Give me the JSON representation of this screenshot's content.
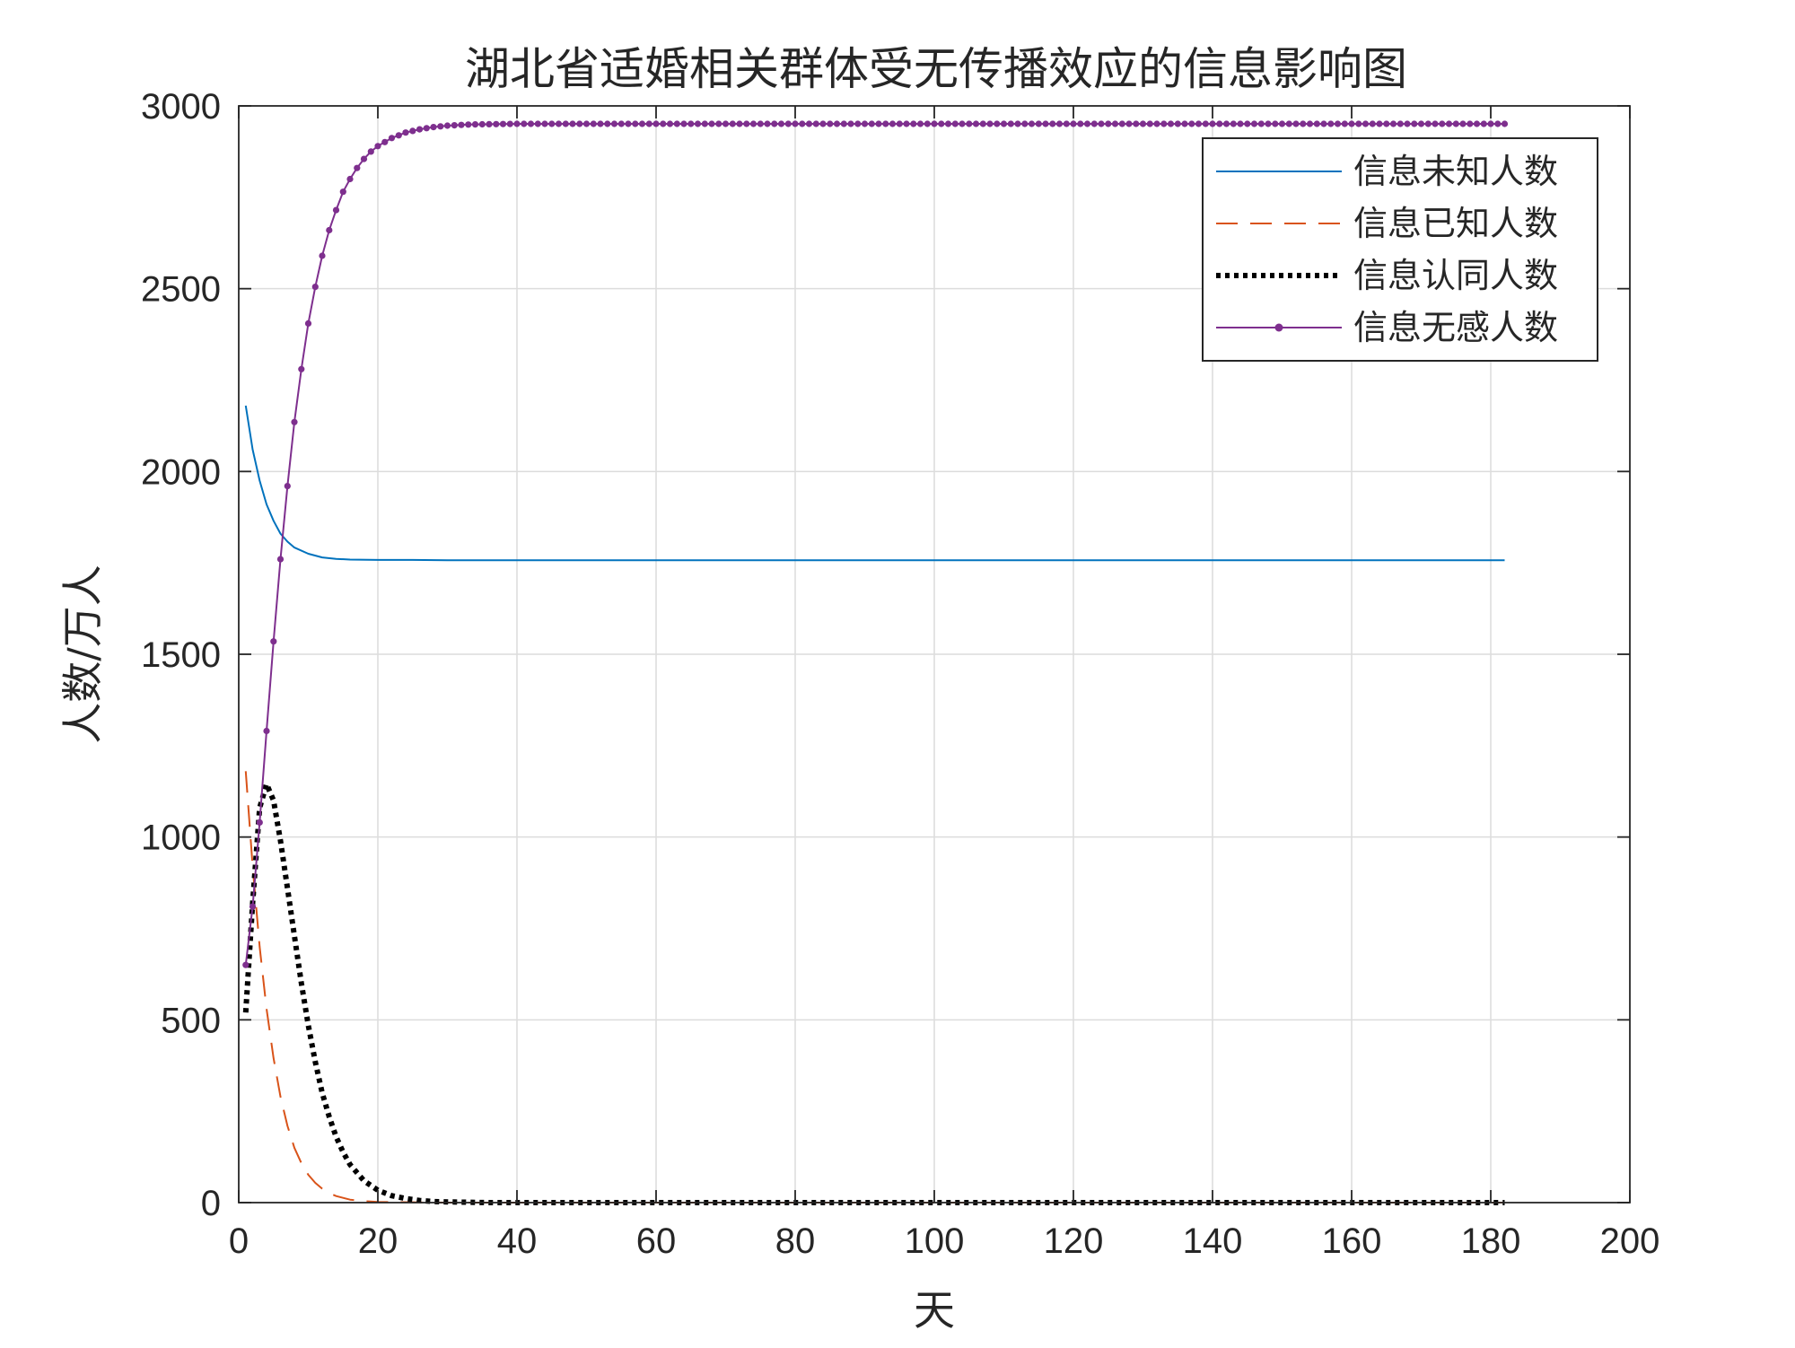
{
  "chart_data": {
    "type": "line",
    "title": "湖北省适婚相关群体受无传播效应的信息影响图",
    "xlabel": "天",
    "ylabel": "人数/万人",
    "xlim": [
      0,
      200
    ],
    "ylim": [
      0,
      3000
    ],
    "xticks": [
      0,
      20,
      40,
      60,
      80,
      100,
      120,
      140,
      160,
      180,
      200
    ],
    "yticks": [
      0,
      500,
      1000,
      1500,
      2000,
      2500,
      3000
    ],
    "grid": true,
    "legend_position": "top-right",
    "series": [
      {
        "name": "信息未知人数",
        "color": "#0072BD",
        "style": "solid",
        "x": [
          1,
          2,
          3,
          4,
          5,
          6,
          7,
          8,
          10,
          12,
          14,
          16,
          20,
          25,
          30,
          40,
          60,
          100,
          140,
          182
        ],
        "y": [
          2180,
          2060,
          1975,
          1910,
          1865,
          1830,
          1808,
          1792,
          1775,
          1765,
          1761,
          1759,
          1758,
          1758,
          1757,
          1757,
          1757,
          1757,
          1757,
          1757
        ]
      },
      {
        "name": "信息已知人数",
        "color": "#D95319",
        "style": "dashed",
        "x": [
          1,
          2,
          3,
          4,
          5,
          6,
          7,
          8,
          9,
          10,
          11,
          12,
          13,
          14,
          16,
          18,
          20,
          25,
          30,
          40,
          60,
          100,
          140,
          182
        ],
        "y": [
          1180,
          920,
          700,
          530,
          395,
          290,
          210,
          150,
          108,
          76,
          54,
          38,
          26,
          18,
          8,
          4,
          2,
          1,
          0,
          0,
          0,
          0,
          0,
          0
        ]
      },
      {
        "name": "信息认同人数",
        "color": "#000000",
        "style": "dotted",
        "x": [
          1,
          2,
          3,
          4,
          5,
          6,
          7,
          8,
          9,
          10,
          11,
          12,
          13,
          14,
          15,
          16,
          18,
          20,
          22,
          24,
          26,
          28,
          30,
          33,
          36,
          40,
          50,
          60,
          100,
          140,
          182
        ],
        "y": [
          520,
          820,
          1080,
          1145,
          1100,
          990,
          860,
          730,
          600,
          485,
          385,
          300,
          235,
          180,
          138,
          104,
          60,
          34,
          19,
          11,
          6,
          3,
          2,
          1,
          0,
          0,
          0,
          0,
          0,
          0,
          0
        ]
      },
      {
        "name": "信息无感人数",
        "color": "#7E2F8E",
        "style": "solid-dot",
        "x": [
          1,
          2,
          3,
          4,
          5,
          6,
          7,
          8,
          9,
          10,
          11,
          12,
          13,
          14,
          15,
          16,
          17,
          18,
          19,
          20,
          22,
          24,
          26,
          28,
          30,
          33,
          36,
          40,
          45,
          50,
          60,
          80,
          100,
          120,
          140,
          160,
          182
        ],
        "y": [
          650,
          810,
          1040,
          1290,
          1535,
          1760,
          1960,
          2135,
          2280,
          2405,
          2505,
          2590,
          2660,
          2715,
          2765,
          2800,
          2830,
          2855,
          2875,
          2890,
          2912,
          2927,
          2936,
          2942,
          2946,
          2949,
          2950,
          2951,
          2951,
          2951,
          2951,
          2951,
          2951,
          2951,
          2951,
          2951,
          2951
        ]
      }
    ]
  }
}
